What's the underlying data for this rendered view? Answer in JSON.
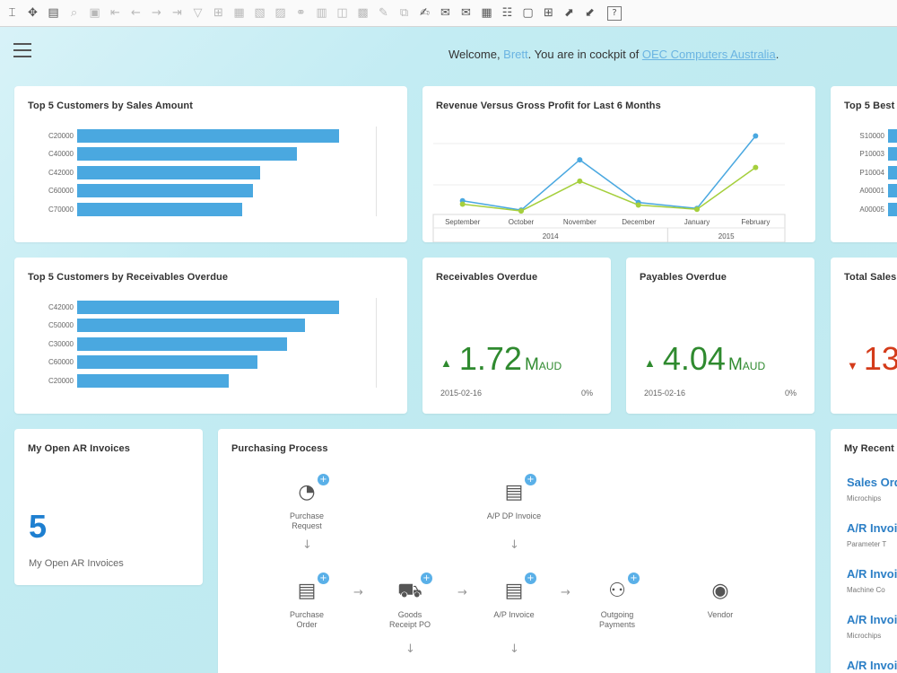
{
  "toolbar": {
    "icons": [
      {
        "name": "pointer-icon",
        "glyph": "⌶",
        "dim": false
      },
      {
        "name": "move-icon",
        "glyph": "✥",
        "dim": false
      },
      {
        "name": "form-icon",
        "glyph": "▤",
        "dim": false
      },
      {
        "name": "binoculars-icon",
        "glyph": "⌕",
        "dim": true
      },
      {
        "name": "find-icon",
        "glyph": "▣",
        "dim": true
      },
      {
        "name": "first-record-icon",
        "glyph": "⇤",
        "dim": true
      },
      {
        "name": "previous-record-icon",
        "glyph": "←",
        "dim": true
      },
      {
        "name": "next-record-icon",
        "glyph": "→",
        "dim": true
      },
      {
        "name": "last-record-icon",
        "glyph": "⇥",
        "dim": true
      },
      {
        "name": "filter-icon",
        "glyph": "▽",
        "dim": true
      },
      {
        "name": "sort-icon",
        "glyph": "⊞",
        "dim": true
      },
      {
        "name": "base-document-icon",
        "glyph": "▦",
        "dim": true
      },
      {
        "name": "target-document-icon",
        "glyph": "▧",
        "dim": true
      },
      {
        "name": "export-icon",
        "glyph": "▨",
        "dim": true
      },
      {
        "name": "link-icon",
        "glyph": "⚭",
        "dim": true
      },
      {
        "name": "journal-icon",
        "glyph": "▥",
        "dim": true
      },
      {
        "name": "layout-icon",
        "glyph": "◫",
        "dim": true
      },
      {
        "name": "settings-doc-icon",
        "glyph": "▩",
        "dim": true
      },
      {
        "name": "edit-icon",
        "glyph": "✎",
        "dim": true
      },
      {
        "name": "copy-icon",
        "glyph": "⧉",
        "dim": true
      },
      {
        "name": "note-icon",
        "glyph": "✍",
        "dim": false
      },
      {
        "name": "message-icon",
        "glyph": "✉",
        "dim": false
      },
      {
        "name": "mail-icon",
        "glyph": "✉",
        "dim": false
      },
      {
        "name": "calendar-icon",
        "glyph": "▦",
        "dim": false
      },
      {
        "name": "users-icon",
        "glyph": "☷",
        "dim": false
      },
      {
        "name": "window-icon",
        "glyph": "▢",
        "dim": false
      },
      {
        "name": "grid-icon",
        "glyph": "⊞",
        "dim": false
      },
      {
        "name": "export-window-icon",
        "glyph": "⬈",
        "dim": false
      },
      {
        "name": "import-icon",
        "glyph": "⬋",
        "dim": false
      },
      {
        "name": "help-icon",
        "glyph": "?",
        "dim": false
      }
    ]
  },
  "header": {
    "welcome_prefix": "Welcome, ",
    "user": "Brett",
    "middle": ". You are in cockpit of ",
    "company": "OEC Computers Australia",
    "suffix": "."
  },
  "cards": {
    "top_customers_sales": {
      "title": "Top 5 Customers by Sales Amount",
      "rows": [
        {
          "label": "C20000",
          "value": 100
        },
        {
          "label": "C40000",
          "value": 84
        },
        {
          "label": "C42000",
          "value": 70
        },
        {
          "label": "C60000",
          "value": 67
        },
        {
          "label": "C70000",
          "value": 63
        }
      ]
    },
    "revenue_vs_profit": {
      "title": "Revenue Versus Gross Profit for Last 6 Months",
      "months": [
        "September",
        "October",
        "November",
        "December",
        "January",
        "February"
      ],
      "years": [
        "2014",
        "2015"
      ]
    },
    "top_best": {
      "title": "Top 5 Best",
      "rows": [
        {
          "label": "S10000"
        },
        {
          "label": "P10003"
        },
        {
          "label": "P10004"
        },
        {
          "label": "A00001"
        },
        {
          "label": "A00005"
        }
      ]
    },
    "top_customers_overdue": {
      "title": "Top 5 Customers by Receivables Overdue",
      "rows": [
        {
          "label": "C42000",
          "value": 100
        },
        {
          "label": "C50000",
          "value": 87
        },
        {
          "label": "C30000",
          "value": 80
        },
        {
          "label": "C60000",
          "value": 69
        },
        {
          "label": "C20000",
          "value": 58
        }
      ]
    },
    "receivables_overdue": {
      "title": "Receivables Overdue",
      "value": "1.72",
      "unit_m": "M",
      "unit_currency": "AUD",
      "date": "2015-02-16",
      "pct": "0%"
    },
    "payables_overdue": {
      "title": "Payables Overdue",
      "value": "4.04",
      "unit_m": "M",
      "unit_currency": "AUD",
      "date": "2015-02-16",
      "pct": "0%"
    },
    "total_sales": {
      "title": "Total Sales",
      "value": "13"
    },
    "open_ar": {
      "title": "My Open AR Invoices",
      "count": "5",
      "label": "My Open AR Invoices"
    },
    "purchasing": {
      "title": "Purchasing Process",
      "nodes": {
        "purchase_request": "Purchase\nRequest",
        "ap_dp_invoice": "A/P DP Invoice",
        "purchase_order": "Purchase\nOrder",
        "goods_receipt": "Goods\nReceipt PO",
        "ap_invoice": "A/P Invoice",
        "outgoing_payments": "Outgoing\nPayments",
        "vendor": "Vendor"
      }
    },
    "recent": {
      "title": "My Recent",
      "items": [
        {
          "title": "Sales Ord",
          "sub": "Microchips"
        },
        {
          "title": "A/R Invoi",
          "sub": "Parameter T"
        },
        {
          "title": "A/R Invoi",
          "sub": "Machine Co"
        },
        {
          "title": "A/R Invoi",
          "sub": "Microchips"
        },
        {
          "title": "A/R Invoi",
          "sub": ""
        }
      ]
    }
  },
  "chart_data": [
    {
      "type": "bar",
      "title": "Top 5 Customers by Sales Amount",
      "categories": [
        "C20000",
        "C40000",
        "C42000",
        "C60000",
        "C70000"
      ],
      "values": [
        100,
        84,
        70,
        67,
        63
      ]
    },
    {
      "type": "line",
      "title": "Revenue Versus Gross Profit for Last 6 Months",
      "categories": [
        "September",
        "October",
        "November",
        "December",
        "January",
        "February"
      ],
      "series": [
        {
          "values": [
            14,
            3,
            62,
            12,
            5,
            90
          ],
          "color": "#4aa8e0"
        },
        {
          "values": [
            10,
            2,
            37,
            9,
            4,
            53
          ],
          "color": "#a5cf3c"
        }
      ],
      "ylim": [
        0,
        100
      ]
    },
    {
      "type": "bar",
      "title": "Top 5 Customers by Receivables Overdue",
      "categories": [
        "C42000",
        "C50000",
        "C30000",
        "C60000",
        "C20000"
      ],
      "values": [
        100,
        87,
        80,
        69,
        58
      ]
    }
  ],
  "colors": {
    "bar": "#4aa8e0",
    "kpi_up": "#2f8a2f",
    "kpi_down": "#d43b1a",
    "link": "#2c7fc6"
  }
}
